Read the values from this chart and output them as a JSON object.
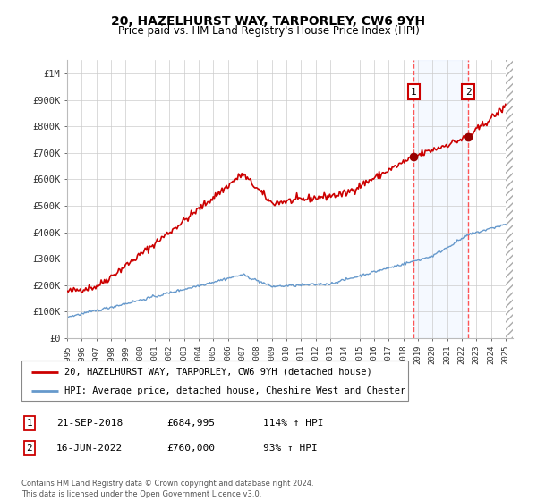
{
  "title": "20, HAZELHURST WAY, TARPORLEY, CW6 9YH",
  "subtitle": "Price paid vs. HM Land Registry's House Price Index (HPI)",
  "legend_line1": "20, HAZELHURST WAY, TARPORLEY, CW6 9YH (detached house)",
  "legend_line2": "HPI: Average price, detached house, Cheshire West and Chester",
  "annotation1_label": "1",
  "annotation1_date": "21-SEP-2018",
  "annotation1_price": "£684,995",
  "annotation1_hpi": "114% ↑ HPI",
  "annotation2_label": "2",
  "annotation2_date": "16-JUN-2022",
  "annotation2_price": "£760,000",
  "annotation2_hpi": "93% ↑ HPI",
  "footer": "Contains HM Land Registry data © Crown copyright and database right 2024.\nThis data is licensed under the Open Government Licence v3.0.",
  "sale1_x": 2018.72,
  "sale1_y": 684995,
  "sale2_x": 2022.45,
  "sale2_y": 760000,
  "red_line_color": "#cc0000",
  "blue_line_color": "#6699cc",
  "highlight_color": "#ddeeff",
  "ylim_min": 0,
  "ylim_max": 1050000,
  "xlim_min": 1995,
  "xlim_max": 2025.5,
  "yticks": [
    0,
    100000,
    200000,
    300000,
    400000,
    500000,
    600000,
    700000,
    800000,
    900000,
    1000000
  ],
  "ytick_labels": [
    "£0",
    "£100K",
    "£200K",
    "£300K",
    "£400K",
    "£500K",
    "£600K",
    "£700K",
    "£800K",
    "£900K",
    "£1M"
  ],
  "xticks": [
    1995,
    1996,
    1997,
    1998,
    1999,
    2000,
    2001,
    2002,
    2003,
    2004,
    2005,
    2006,
    2007,
    2008,
    2009,
    2010,
    2011,
    2012,
    2013,
    2014,
    2015,
    2016,
    2017,
    2018,
    2019,
    2020,
    2021,
    2022,
    2023,
    2024,
    2025
  ]
}
